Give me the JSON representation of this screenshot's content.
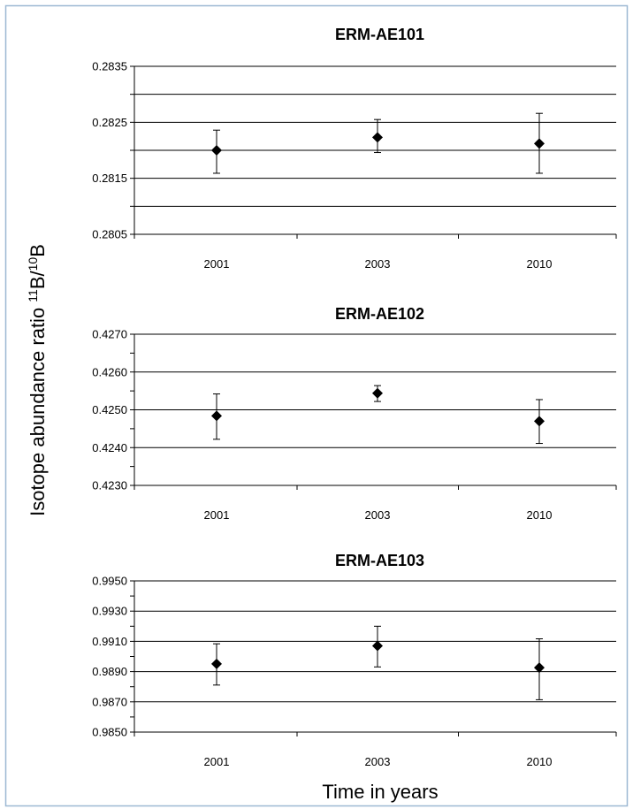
{
  "figure": {
    "ylabel": "Isotope abundance ratio ",
    "ylabel_sup1": "11",
    "ylabel_mid": "B/",
    "ylabel_sup2": "10",
    "ylabel_end": "B",
    "xlabel": "Time in years",
    "frame_color": "#9db8d3"
  },
  "chart_data": [
    {
      "type": "scatter",
      "title": "ERM-AE101",
      "categories": [
        "2001",
        "2003",
        "2010"
      ],
      "values": [
        0.282,
        0.28223,
        0.28212
      ],
      "error_high": [
        0.28236,
        0.28255,
        0.28266
      ],
      "error_low": [
        0.28159,
        0.28196,
        0.28159
      ],
      "ylim": [
        0.2805,
        0.2835
      ],
      "yticks": [
        "0.2805",
        "0.2815",
        "0.2825",
        "0.2835"
      ],
      "gridlines": [
        0.281,
        0.2815,
        0.282,
        0.2825,
        0.283,
        0.2835
      ],
      "grid": true
    },
    {
      "type": "scatter",
      "title": "ERM-AE102",
      "categories": [
        "2001",
        "2003",
        "2010"
      ],
      "values": [
        0.42484,
        0.42544,
        0.4247
      ],
      "error_high": [
        0.42542,
        0.42564,
        0.42527
      ],
      "error_low": [
        0.42422,
        0.42522,
        0.42411
      ],
      "ylim": [
        0.423,
        0.427
      ],
      "yticks": [
        "0.4230",
        "0.4240",
        "0.4250",
        "0.4260",
        "0.4270"
      ],
      "gridlines": [
        0.424,
        0.425,
        0.426,
        0.427
      ],
      "grid": true
    },
    {
      "type": "scatter",
      "title": "ERM-AE103",
      "categories": [
        "2001",
        "2003",
        "2010"
      ],
      "values": [
        0.98951,
        0.9907,
        0.98926
      ],
      "error_high": [
        0.99084,
        0.992,
        0.99117
      ],
      "error_low": [
        0.98811,
        0.98931,
        0.98714
      ],
      "ylim": [
        0.985,
        0.995
      ],
      "yticks": [
        "0.9850",
        "0.9870",
        "0.9890",
        "0.9910",
        "0.9930",
        "0.9950"
      ],
      "gridlines": [
        0.987,
        0.989,
        0.991,
        0.993,
        0.995
      ],
      "grid": true
    }
  ]
}
